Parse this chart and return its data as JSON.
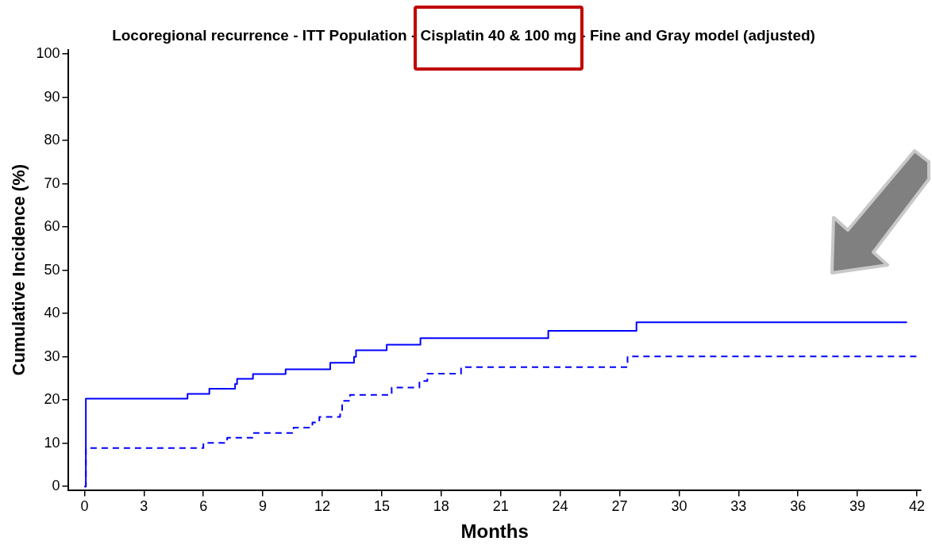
{
  "chart_data": {
    "type": "step",
    "title": "Locoregional recurrence - ITT Population - Cisplatin 40 & 100 mg - Fine and Gray model (adjusted)",
    "xlabel": "Months",
    "ylabel": "Cumulative Incidence (%)",
    "xlim": [
      -0.8,
      42.2
    ],
    "xticks": [
      0,
      3,
      6,
      9,
      12,
      15,
      18,
      21,
      24,
      27,
      30,
      33,
      36,
      39,
      42
    ],
    "ylim": [
      -0.8,
      101
    ],
    "yticks": [
      0,
      10,
      20,
      30,
      40,
      50,
      60,
      70,
      80,
      90,
      100
    ],
    "grid": false,
    "legend": false,
    "series": [
      {
        "color": "#0000ff",
        "line_style": "solid",
        "x": [
          0,
          0.07,
          5.2,
          6.3,
          7.6,
          7.7,
          8.5,
          10.15,
          12.4,
          13.6,
          13.7,
          15.25,
          16.95,
          23.4,
          27.85,
          41.5
        ],
        "values": [
          0,
          20.3,
          21.4,
          22.6,
          23.7,
          24.9,
          26.0,
          27.1,
          28.6,
          30.0,
          31.5,
          32.8,
          34.3,
          36.0,
          38.0,
          38.0
        ]
      },
      {
        "color": "#0000ff",
        "line_style": "dashed",
        "x": [
          0,
          0.07,
          6.0,
          7.2,
          8.55,
          10.55,
          11.5,
          11.85,
          12.9,
          13.0,
          13.4,
          15.5,
          16.9,
          17.3,
          19.0,
          27.4,
          42
        ],
        "values": [
          0,
          8.9,
          10.1,
          11.3,
          12.4,
          13.6,
          14.8,
          16.1,
          17.4,
          19.8,
          21.2,
          22.9,
          24.4,
          26.1,
          27.6,
          30.1,
          30.1
        ]
      }
    ]
  }
}
